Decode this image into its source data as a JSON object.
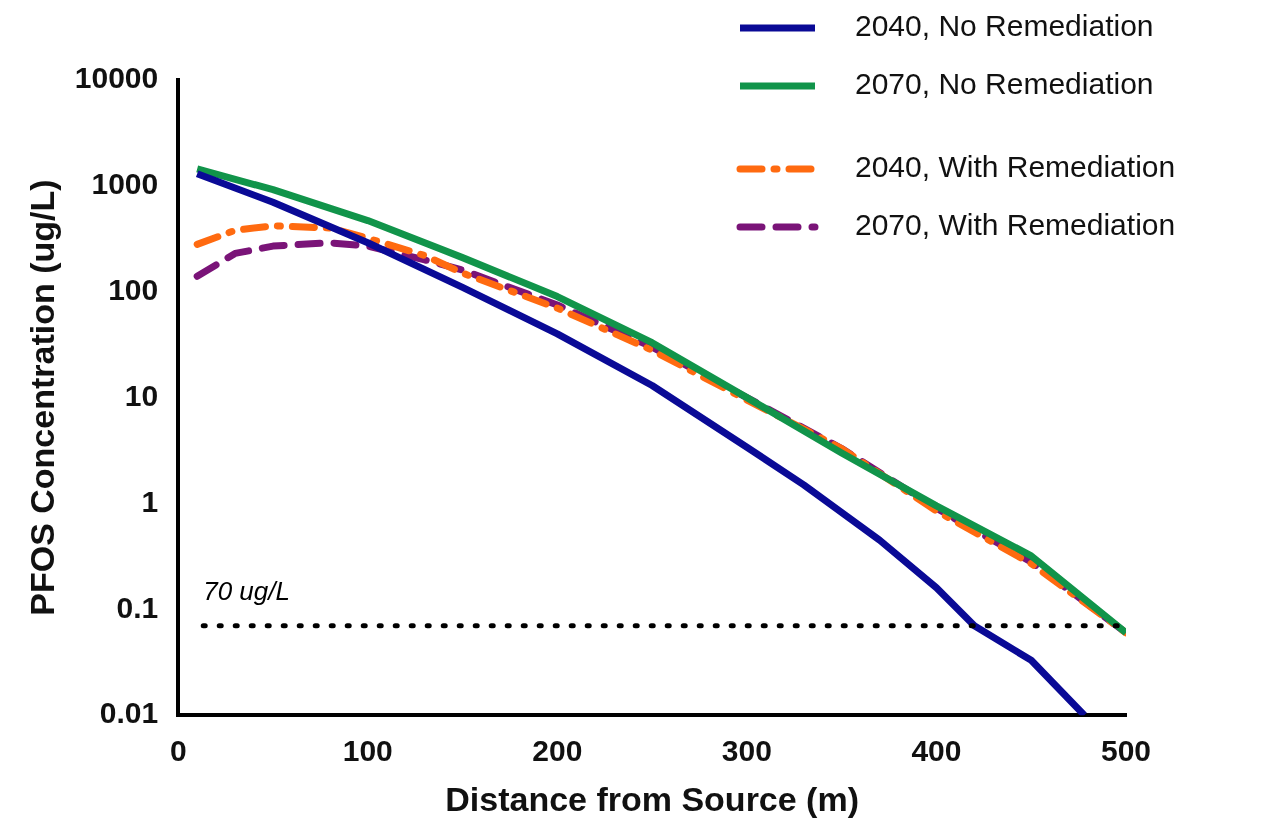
{
  "chart_data": {
    "type": "line",
    "xlabel": "Distance from Source (m)",
    "ylabel": "PFOS Concentration (ug/L)",
    "log": "y",
    "grid": false,
    "legend": "top right",
    "marker": "none",
    "xlim": [
      0,
      500
    ],
    "xticks": [
      0,
      100,
      200,
      300,
      400,
      500
    ],
    "ylim": [
      0.01,
      10000
    ],
    "yticks": [
      0.01,
      0.1,
      1,
      10,
      100,
      1000,
      10000
    ],
    "ref_lines": [
      {
        "axis": "y",
        "value": 0.07,
        "label": "70 ug/L",
        "color": "#000000",
        "line_style": "dotted"
      }
    ],
    "series": [
      {
        "name": "2040, No Remediation",
        "color": "#0a0a96",
        "line_style": "solid",
        "x": [
          10,
          50,
          100,
          150,
          200,
          250,
          300,
          330,
          370,
          400,
          420,
          450,
          478
        ],
        "values": [
          1300,
          700,
          290,
          110,
          40,
          13,
          3.4,
          1.5,
          0.45,
          0.16,
          0.07,
          0.033,
          0.01
        ]
      },
      {
        "name": "2070, No Remediation",
        "color": "#11944a",
        "line_style": "solid",
        "x": [
          10,
          50,
          100,
          150,
          200,
          250,
          300,
          350,
          400,
          450,
          500
        ],
        "values": [
          1450,
          920,
          470,
          210,
          90,
          33,
          10,
          3,
          0.95,
          0.32,
          0.06
        ]
      },
      {
        "name": "2040, With Remediation",
        "color": "#ff6a10",
        "line_style": "dashdot",
        "x": [
          10,
          30,
          50,
          80,
          100,
          130,
          150,
          200,
          250,
          300,
          350,
          400,
          450,
          500
        ],
        "values": [
          280,
          380,
          420,
          400,
          320,
          220,
          150,
          70,
          28,
          9.5,
          3.3,
          0.85,
          0.27,
          0.06
        ]
      },
      {
        "name": "2070, With Remediation",
        "color": "#7a1478",
        "line_style": "dashed",
        "x": [
          10,
          30,
          50,
          80,
          100,
          130,
          150,
          200,
          250,
          300,
          350,
          400,
          450,
          500
        ],
        "values": [
          140,
          230,
          270,
          290,
          270,
          200,
          160,
          75,
          30,
          10,
          3.3,
          0.9,
          0.28,
          0.06
        ]
      }
    ]
  }
}
